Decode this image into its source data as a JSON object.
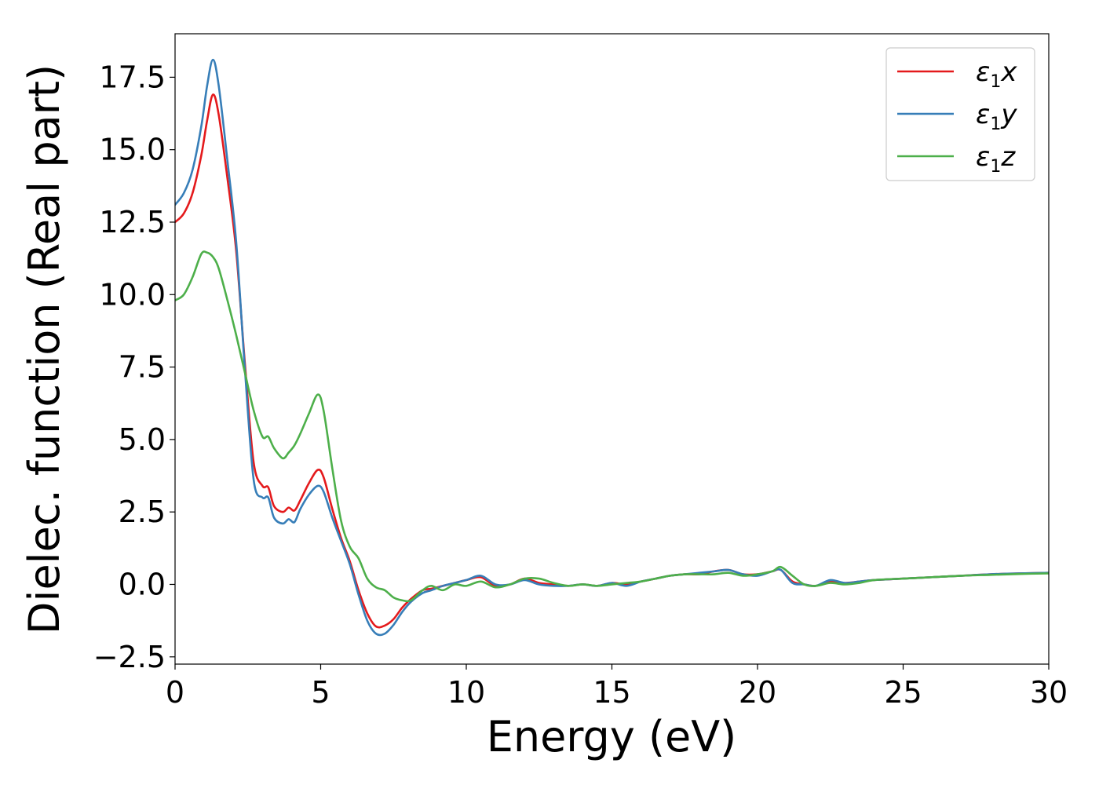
{
  "chart_data": {
    "type": "line",
    "xlabel": "Energy (eV)",
    "ylabel": "Dielec. function (Real part)",
    "xlim": [
      0,
      30
    ],
    "ylim": [
      -2.75,
      19.0
    ],
    "xticks": [
      0,
      5,
      10,
      15,
      20,
      25,
      30
    ],
    "yticks": [
      -2.5,
      0.0,
      2.5,
      5.0,
      7.5,
      10.0,
      12.5,
      15.0,
      17.5
    ],
    "xtick_labels": [
      "0",
      "5",
      "10",
      "15",
      "20",
      "25",
      "30"
    ],
    "ytick_labels": [
      "−2.5",
      "0.0",
      "2.5",
      "5.0",
      "7.5",
      "10.0",
      "12.5",
      "15.0",
      "17.5"
    ],
    "grid": false,
    "legend_position": "top-right",
    "series": [
      {
        "name": "ε₁x",
        "name_base": "ε",
        "name_sub": "1",
        "name_suffix": "x",
        "color": "#e41a1c",
        "x": [
          0,
          0.3,
          0.6,
          0.9,
          1.1,
          1.3,
          1.5,
          1.8,
          2.1,
          2.4,
          2.7,
          3.0,
          3.2,
          3.4,
          3.7,
          3.9,
          4.1,
          4.3,
          4.6,
          4.9,
          5.1,
          5.4,
          5.7,
          6.0,
          6.3,
          6.6,
          6.9,
          7.2,
          7.5,
          7.8,
          8.1,
          8.5,
          8.8,
          9.2,
          9.6,
          10.0,
          10.5,
          11.0,
          11.5,
          12.0,
          12.5,
          13.0,
          13.5,
          14.0,
          14.5,
          15.0,
          15.5,
          16.0,
          16.5,
          17.0,
          17.5,
          18.0,
          18.5,
          19.0,
          19.5,
          20.0,
          20.5,
          20.8,
          21.2,
          21.6,
          22.0,
          22.5,
          23.0,
          23.5,
          24.0,
          25.0,
          26.0,
          27.0,
          28.0,
          29.0,
          30.0
        ],
        "y": [
          12.5,
          12.8,
          13.5,
          14.8,
          16.0,
          16.9,
          16.2,
          14.0,
          11.5,
          7.6,
          4.2,
          3.4,
          3.35,
          2.7,
          2.5,
          2.65,
          2.55,
          2.9,
          3.5,
          3.95,
          3.7,
          2.6,
          1.6,
          0.8,
          -0.2,
          -1.0,
          -1.45,
          -1.42,
          -1.2,
          -0.8,
          -0.5,
          -0.2,
          -0.15,
          -0.05,
          0.05,
          0.15,
          0.25,
          -0.05,
          0.0,
          0.2,
          0.05,
          0.0,
          -0.05,
          0.0,
          -0.05,
          0.05,
          0.0,
          0.1,
          0.2,
          0.3,
          0.35,
          0.35,
          0.45,
          0.5,
          0.35,
          0.35,
          0.45,
          0.5,
          0.1,
          0.0,
          -0.05,
          0.1,
          0.05,
          0.1,
          0.15,
          0.2,
          0.25,
          0.3,
          0.35,
          0.38,
          0.4
        ]
      },
      {
        "name": "ε₁y",
        "name_base": "ε",
        "name_sub": "1",
        "name_suffix": "y",
        "color": "#377eb8",
        "x": [
          0,
          0.3,
          0.6,
          0.9,
          1.1,
          1.3,
          1.5,
          1.8,
          2.1,
          2.4,
          2.7,
          3.0,
          3.2,
          3.4,
          3.7,
          3.9,
          4.1,
          4.3,
          4.6,
          4.9,
          5.1,
          5.4,
          5.7,
          6.0,
          6.3,
          6.6,
          6.9,
          7.2,
          7.5,
          7.8,
          8.1,
          8.5,
          8.8,
          9.2,
          9.6,
          10.0,
          10.5,
          11.0,
          11.5,
          12.0,
          12.5,
          13.0,
          13.5,
          14.0,
          14.5,
          15.0,
          15.5,
          16.0,
          16.5,
          17.0,
          17.5,
          18.0,
          18.5,
          19.0,
          19.5,
          20.0,
          20.5,
          20.8,
          21.2,
          21.6,
          22.0,
          22.5,
          23.0,
          23.5,
          24.0,
          25.0,
          26.0,
          27.0,
          28.0,
          29.0,
          30.0
        ],
        "y": [
          13.1,
          13.5,
          14.3,
          15.8,
          17.2,
          18.1,
          17.2,
          14.6,
          11.8,
          7.4,
          3.6,
          3.0,
          3.0,
          2.3,
          2.1,
          2.25,
          2.15,
          2.6,
          3.1,
          3.4,
          3.2,
          2.3,
          1.5,
          0.7,
          -0.35,
          -1.25,
          -1.7,
          -1.7,
          -1.4,
          -0.95,
          -0.6,
          -0.3,
          -0.2,
          -0.05,
          0.05,
          0.15,
          0.3,
          0.0,
          0.0,
          0.15,
          0.0,
          -0.05,
          -0.05,
          0.0,
          -0.05,
          0.05,
          -0.05,
          0.1,
          0.2,
          0.3,
          0.35,
          0.4,
          0.45,
          0.5,
          0.35,
          0.3,
          0.45,
          0.5,
          0.05,
          0.0,
          -0.05,
          0.15,
          0.05,
          0.1,
          0.15,
          0.2,
          0.25,
          0.3,
          0.35,
          0.38,
          0.4
        ]
      },
      {
        "name": "ε₁z",
        "name_base": "ε",
        "name_sub": "1",
        "name_suffix": "z",
        "color": "#4daf4a",
        "x": [
          0,
          0.3,
          0.6,
          0.9,
          1.1,
          1.3,
          1.5,
          1.8,
          2.1,
          2.4,
          2.7,
          3.0,
          3.2,
          3.4,
          3.7,
          3.9,
          4.1,
          4.3,
          4.6,
          4.9,
          5.1,
          5.4,
          5.7,
          6.0,
          6.3,
          6.6,
          6.9,
          7.2,
          7.5,
          7.8,
          8.1,
          8.5,
          8.8,
          9.2,
          9.6,
          10.0,
          10.5,
          11.0,
          11.5,
          12.0,
          12.5,
          13.0,
          13.5,
          14.0,
          14.5,
          15.0,
          15.5,
          16.0,
          16.5,
          17.0,
          17.5,
          18.0,
          18.5,
          19.0,
          19.5,
          20.0,
          20.5,
          20.8,
          21.2,
          21.6,
          22.0,
          22.5,
          23.0,
          23.5,
          24.0,
          25.0,
          26.0,
          27.0,
          28.0,
          29.0,
          30.0
        ],
        "y": [
          9.8,
          10.0,
          10.6,
          11.4,
          11.45,
          11.3,
          10.9,
          9.8,
          8.6,
          7.3,
          6.0,
          5.1,
          5.1,
          4.7,
          4.35,
          4.55,
          4.8,
          5.2,
          5.9,
          6.55,
          6.0,
          4.0,
          2.2,
          1.3,
          0.9,
          0.2,
          -0.1,
          -0.2,
          -0.45,
          -0.55,
          -0.55,
          -0.2,
          -0.05,
          -0.2,
          0.0,
          -0.05,
          0.1,
          -0.1,
          0.0,
          0.2,
          0.2,
          0.05,
          -0.05,
          0.0,
          -0.05,
          0.0,
          0.05,
          0.1,
          0.2,
          0.3,
          0.35,
          0.35,
          0.35,
          0.4,
          0.3,
          0.35,
          0.45,
          0.6,
          0.3,
          0.0,
          -0.05,
          0.05,
          0.0,
          0.05,
          0.15,
          0.2,
          0.25,
          0.3,
          0.33,
          0.36,
          0.38
        ]
      }
    ]
  }
}
